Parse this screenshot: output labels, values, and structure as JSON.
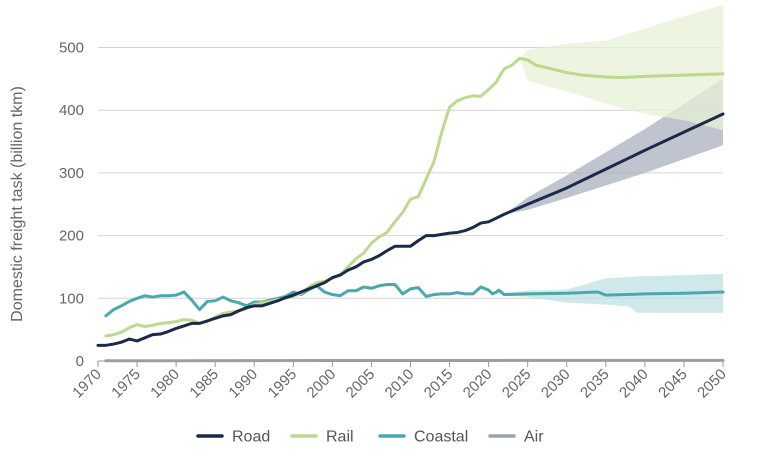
{
  "chart_data": {
    "type": "line",
    "ylabel": "Domestic freight task (billion tkm)",
    "xlim": [
      1970,
      2050
    ],
    "ylim": [
      0,
      550
    ],
    "x_ticks": [
      "1970",
      "1975",
      "1980",
      "1985",
      "1990",
      "1995",
      "2000",
      "2005",
      "2010",
      "2015",
      "2020",
      "2025",
      "2030",
      "2035",
      "2040",
      "2045",
      "2050"
    ],
    "y_ticks": [
      "0",
      "100",
      "200",
      "300",
      "400",
      "500"
    ],
    "grid": true,
    "legend_position": "bottom",
    "series": [
      {
        "name": "Road",
        "color": "#1b2a4a",
        "band_color": "#a9b0bf",
        "points": [
          [
            1970,
            25
          ],
          [
            1971,
            25
          ],
          [
            1972,
            27
          ],
          [
            1973,
            30
          ],
          [
            1974,
            35
          ],
          [
            1975,
            32
          ],
          [
            1976,
            37
          ],
          [
            1977,
            42
          ],
          [
            1978,
            43
          ],
          [
            1979,
            47
          ],
          [
            1980,
            52
          ],
          [
            1981,
            56
          ],
          [
            1982,
            60
          ],
          [
            1983,
            60
          ],
          [
            1984,
            64
          ],
          [
            1985,
            68
          ],
          [
            1986,
            72
          ],
          [
            1987,
            74
          ],
          [
            1988,
            80
          ],
          [
            1989,
            85
          ],
          [
            1990,
            88
          ],
          [
            1991,
            88
          ],
          [
            1992,
            92
          ],
          [
            1993,
            96
          ],
          [
            1994,
            101
          ],
          [
            1995,
            105
          ],
          [
            1996,
            110
          ],
          [
            1997,
            115
          ],
          [
            1998,
            120
          ],
          [
            1999,
            125
          ],
          [
            2000,
            133
          ],
          [
            2001,
            137
          ],
          [
            2002,
            145
          ],
          [
            2003,
            150
          ],
          [
            2004,
            158
          ],
          [
            2005,
            162
          ],
          [
            2006,
            168
          ],
          [
            2007,
            176
          ],
          [
            2008,
            183
          ],
          [
            2009,
            183
          ],
          [
            2010,
            183
          ],
          [
            2011,
            192
          ],
          [
            2012,
            200
          ],
          [
            2013,
            200
          ],
          [
            2014,
            202
          ],
          [
            2015,
            204
          ],
          [
            2016,
            205
          ],
          [
            2017,
            208
          ],
          [
            2018,
            213
          ],
          [
            2019,
            220
          ],
          [
            2020,
            222
          ],
          [
            2021,
            228
          ],
          [
            2022,
            234
          ],
          [
            2025,
            250
          ],
          [
            2030,
            276
          ],
          [
            2035,
            306
          ],
          [
            2040,
            336
          ],
          [
            2045,
            365
          ],
          [
            2050,
            394
          ]
        ],
        "band": [
          [
            2022,
            234,
            234
          ],
          [
            2025,
            241,
            261
          ],
          [
            2030,
            260,
            296
          ],
          [
            2035,
            280,
            333
          ],
          [
            2040,
            300,
            370
          ],
          [
            2045,
            322,
            410
          ],
          [
            2050,
            344,
            450
          ]
        ]
      },
      {
        "name": "Rail",
        "color": "#bcd98e",
        "band_color": "#e7f0d5",
        "points": [
          [
            1971,
            40
          ],
          [
            1972,
            42
          ],
          [
            1973,
            46
          ],
          [
            1974,
            53
          ],
          [
            1975,
            58
          ],
          [
            1976,
            55
          ],
          [
            1977,
            57
          ],
          [
            1978,
            60
          ],
          [
            1979,
            61
          ],
          [
            1980,
            63
          ],
          [
            1981,
            66
          ],
          [
            1982,
            65
          ],
          [
            1983,
            60
          ],
          [
            1984,
            63
          ],
          [
            1985,
            70
          ],
          [
            1986,
            76
          ],
          [
            1987,
            78
          ],
          [
            1988,
            80
          ],
          [
            1989,
            83
          ],
          [
            1990,
            90
          ],
          [
            1991,
            93
          ],
          [
            1992,
            95
          ],
          [
            1993,
            98
          ],
          [
            1994,
            100
          ],
          [
            1995,
            103
          ],
          [
            1996,
            108
          ],
          [
            1997,
            118
          ],
          [
            1998,
            125
          ],
          [
            1999,
            127
          ],
          [
            2000,
            132
          ],
          [
            2001,
            138
          ],
          [
            2002,
            150
          ],
          [
            2003,
            163
          ],
          [
            2004,
            172
          ],
          [
            2005,
            188
          ],
          [
            2006,
            198
          ],
          [
            2007,
            205
          ],
          [
            2008,
            222
          ],
          [
            2009,
            237
          ],
          [
            2010,
            258
          ],
          [
            2011,
            262
          ],
          [
            2012,
            290
          ],
          [
            2013,
            318
          ],
          [
            2014,
            365
          ],
          [
            2015,
            405
          ],
          [
            2016,
            415
          ],
          [
            2017,
            420
          ],
          [
            2018,
            423
          ],
          [
            2019,
            422
          ],
          [
            2020,
            433
          ],
          [
            2021,
            445
          ],
          [
            2021.3,
            452
          ],
          [
            2022,
            466
          ],
          [
            2023,
            472
          ],
          [
            2024,
            483
          ],
          [
            2025,
            480
          ],
          [
            2026,
            472
          ],
          [
            2028,
            466
          ],
          [
            2030,
            460
          ],
          [
            2032,
            456
          ],
          [
            2035,
            453
          ],
          [
            2037,
            452
          ],
          [
            2040,
            454
          ],
          [
            2045,
            456
          ],
          [
            2050,
            458
          ]
        ],
        "band": [
          [
            2024,
            483,
            483
          ],
          [
            2025,
            447,
            496
          ],
          [
            2030,
            430,
            506
          ],
          [
            2035,
            410,
            511
          ],
          [
            2040,
            394,
            530
          ],
          [
            2045,
            384,
            550
          ],
          [
            2050,
            368,
            568
          ]
        ]
      },
      {
        "name": "Coastal",
        "color": "#4aa9ad",
        "band_color": "#bfe2e3",
        "points": [
          [
            1971,
            72
          ],
          [
            1972,
            82
          ],
          [
            1973,
            88
          ],
          [
            1974,
            95
          ],
          [
            1975,
            100
          ],
          [
            1976,
            104
          ],
          [
            1977,
            102
          ],
          [
            1978,
            104
          ],
          [
            1979,
            104
          ],
          [
            1980,
            105
          ],
          [
            1981,
            110
          ],
          [
            1982,
            97
          ],
          [
            1983,
            82
          ],
          [
            1984,
            95
          ],
          [
            1985,
            96
          ],
          [
            1986,
            102
          ],
          [
            1987,
            96
          ],
          [
            1988,
            93
          ],
          [
            1989,
            88
          ],
          [
            1990,
            94
          ],
          [
            1991,
            94
          ],
          [
            1992,
            97
          ],
          [
            1993,
            100
          ],
          [
            1994,
            103
          ],
          [
            1995,
            110
          ],
          [
            1996,
            106
          ],
          [
            1997,
            114
          ],
          [
            1998,
            120
          ],
          [
            1999,
            110
          ],
          [
            2000,
            106
          ],
          [
            2001,
            104
          ],
          [
            2002,
            112
          ],
          [
            2003,
            112
          ],
          [
            2004,
            118
          ],
          [
            2005,
            116
          ],
          [
            2006,
            120
          ],
          [
            2007,
            122
          ],
          [
            2008,
            122
          ],
          [
            2009,
            107
          ],
          [
            2010,
            115
          ],
          [
            2011,
            117
          ],
          [
            2012,
            103
          ],
          [
            2013,
            106
          ],
          [
            2014,
            107
          ],
          [
            2015,
            107
          ],
          [
            2016,
            109
          ],
          [
            2017,
            107
          ],
          [
            2018,
            107
          ],
          [
            2019,
            118
          ],
          [
            2020,
            113
          ],
          [
            2020.5,
            107
          ],
          [
            2021,
            110
          ],
          [
            2021.3,
            113
          ],
          [
            2022,
            106
          ],
          [
            2025,
            107
          ],
          [
            2030,
            108
          ],
          [
            2034,
            110
          ],
          [
            2035,
            105
          ],
          [
            2040,
            107
          ],
          [
            2045,
            108
          ],
          [
            2050,
            110
          ]
        ],
        "band": [
          [
            2020.5,
            107,
            107
          ],
          [
            2025,
            102,
            112
          ],
          [
            2030,
            93,
            114
          ],
          [
            2035,
            90,
            132
          ],
          [
            2038,
            87,
            134
          ],
          [
            2039,
            77,
            135
          ],
          [
            2045,
            77,
            137
          ],
          [
            2050,
            77,
            139
          ]
        ]
      },
      {
        "name": "Air",
        "color": "#99a3ab",
        "band_color": "#d9dde0",
        "points": [
          [
            1971,
            0.3
          ],
          [
            1980,
            0.4
          ],
          [
            1990,
            0.6
          ],
          [
            2000,
            0.8
          ],
          [
            2010,
            0.9
          ],
          [
            2020,
            0.9
          ],
          [
            2030,
            1
          ],
          [
            2040,
            1
          ],
          [
            2050,
            1
          ]
        ],
        "band": []
      }
    ]
  }
}
